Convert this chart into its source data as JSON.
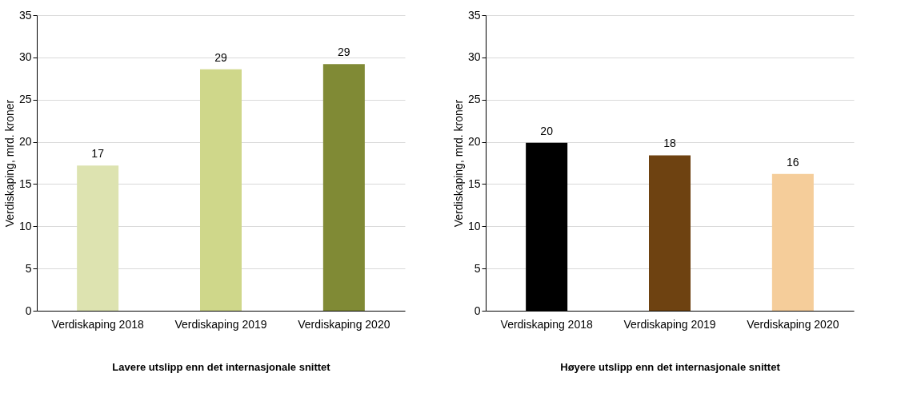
{
  "chart_data": [
    {
      "type": "bar",
      "xlabel": "Lavere utslipp enn det internasjonale snittet",
      "ylabel": "Verdiskaping, mrd. kroner",
      "categories": [
        "Verdiskaping 2018",
        "Verdiskaping 2019",
        "Verdiskaping 2020"
      ],
      "values": [
        17.2,
        28.6,
        29.2
      ],
      "colors": [
        "#dde3b0",
        "#cfd78a",
        "#808a35"
      ],
      "value_labels": [
        "17",
        "29",
        "29"
      ],
      "ylim": [
        0,
        35
      ],
      "yticks": [
        0,
        5,
        10,
        15,
        20,
        25,
        30,
        35
      ],
      "grid": "y",
      "legend": false
    },
    {
      "type": "bar",
      "xlabel": "Høyere utslipp enn det internasjonale snittet",
      "ylabel": "Verdiskaping, mrd. kroner",
      "categories": [
        "Verdiskaping 2018",
        "Verdiskaping 2019",
        "Verdiskaping 2020"
      ],
      "values": [
        19.9,
        18.4,
        16.2
      ],
      "colors": [
        "#000000",
        "#6e4211",
        "#f5cd9a"
      ],
      "value_labels": [
        "20",
        "18",
        "16"
      ],
      "ylim": [
        0,
        35
      ],
      "yticks": [
        0,
        5,
        10,
        15,
        20,
        25,
        30,
        35
      ],
      "grid": "y",
      "legend": false
    }
  ]
}
